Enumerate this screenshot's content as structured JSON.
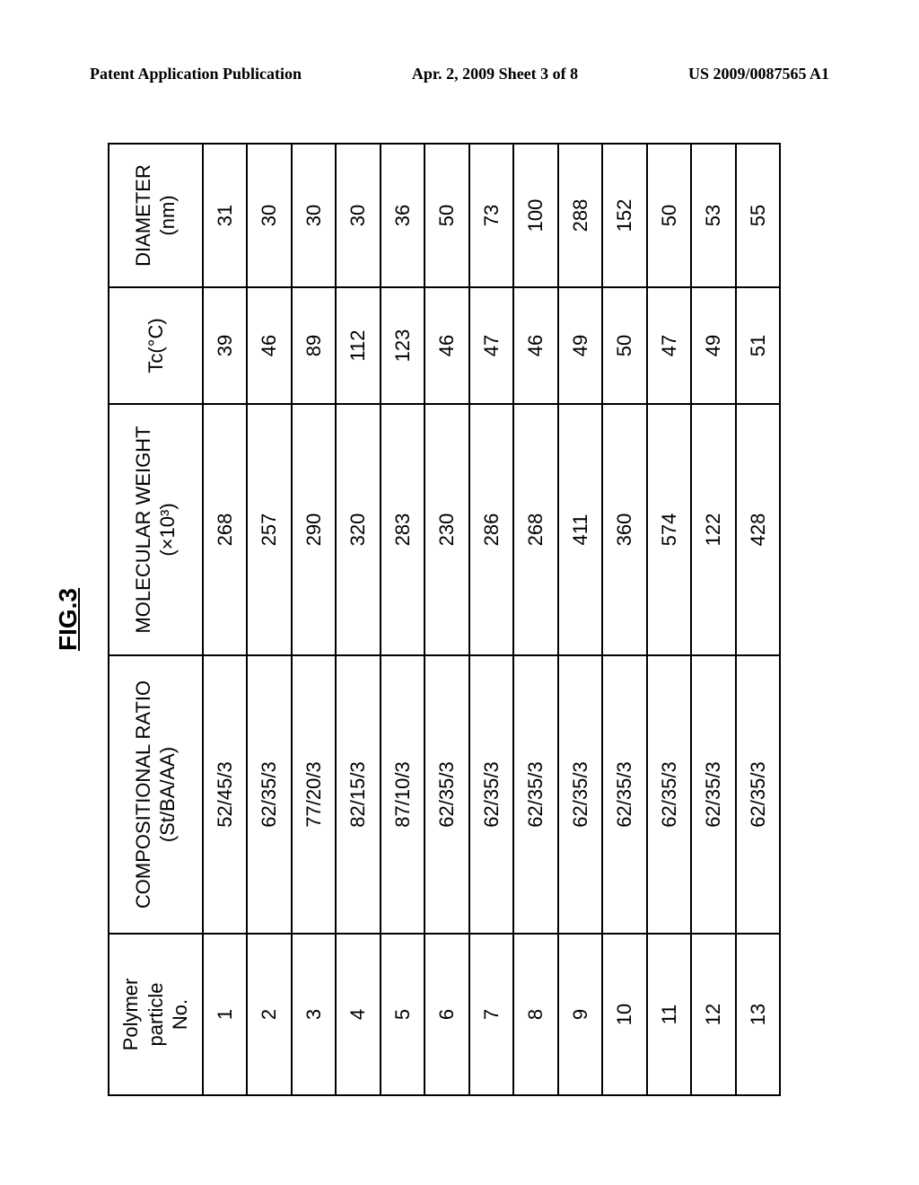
{
  "header": {
    "left": "Patent Application Publication",
    "center": "Apr. 2, 2009  Sheet 3 of 8",
    "right": "US 2009/0087565 A1"
  },
  "figure": {
    "title": "FIG.3",
    "title_fontsize": 28,
    "font_family": "Arial, Helvetica, sans-serif",
    "cell_fontsize": 22,
    "border_color": "#000000",
    "background_color": "#ffffff",
    "columns": [
      {
        "label_line1": "Polymer particle",
        "label_line2": "No."
      },
      {
        "label_line1": "COMPOSITIONAL RATIO",
        "label_line2": "(St/BA/AA)"
      },
      {
        "label_line1": "MOLECULAR WEIGHT",
        "label_line2": "(×10³)"
      },
      {
        "label_line1": "Tc(°C)",
        "label_line2": ""
      },
      {
        "label_line1": "DIAMETER",
        "label_line2": "(nm)"
      }
    ],
    "rows": [
      {
        "no": "1",
        "ratio": "52/45/3",
        "mw": "268",
        "tc": "39",
        "dia": "31"
      },
      {
        "no": "2",
        "ratio": "62/35/3",
        "mw": "257",
        "tc": "46",
        "dia": "30"
      },
      {
        "no": "3",
        "ratio": "77/20/3",
        "mw": "290",
        "tc": "89",
        "dia": "30"
      },
      {
        "no": "4",
        "ratio": "82/15/3",
        "mw": "320",
        "tc": "112",
        "dia": "30"
      },
      {
        "no": "5",
        "ratio": "87/10/3",
        "mw": "283",
        "tc": "123",
        "dia": "36"
      },
      {
        "no": "6",
        "ratio": "62/35/3",
        "mw": "230",
        "tc": "46",
        "dia": "50"
      },
      {
        "no": "7",
        "ratio": "62/35/3",
        "mw": "286",
        "tc": "47",
        "dia": "73"
      },
      {
        "no": "8",
        "ratio": "62/35/3",
        "mw": "268",
        "tc": "46",
        "dia": "100"
      },
      {
        "no": "9",
        "ratio": "62/35/3",
        "mw": "411",
        "tc": "49",
        "dia": "288"
      },
      {
        "no": "10",
        "ratio": "62/35/3",
        "mw": "360",
        "tc": "50",
        "dia": "152"
      },
      {
        "no": "11",
        "ratio": "62/35/3",
        "mw": "574",
        "tc": "47",
        "dia": "50"
      },
      {
        "no": "12",
        "ratio": "62/35/3",
        "mw": "122",
        "tc": "49",
        "dia": "53"
      },
      {
        "no": "13",
        "ratio": "62/35/3",
        "mw": "428",
        "tc": "51",
        "dia": "55"
      }
    ]
  }
}
